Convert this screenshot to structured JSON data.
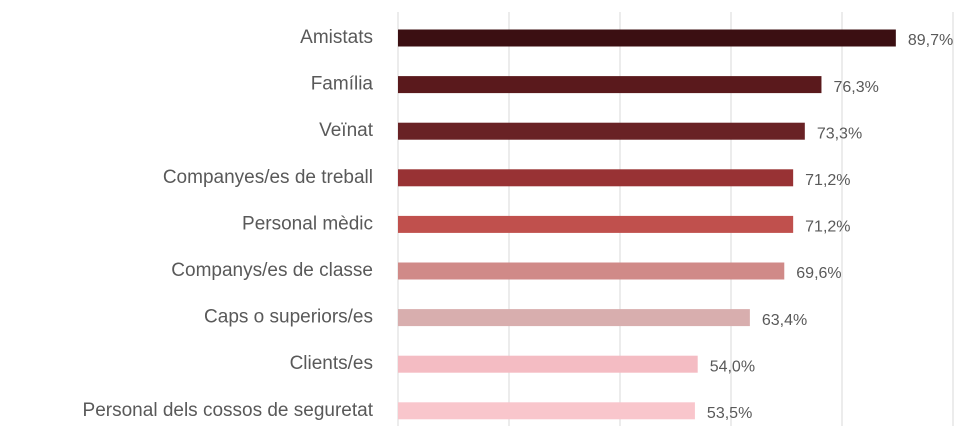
{
  "chart_data": {
    "type": "hbar",
    "categories": [
      "Amistats",
      "Família",
      "Veïnat",
      "Companyes/es de treball",
      "Personal mèdic",
      "Companys/es de classe",
      "Caps o superiors/es",
      "Clients/es",
      "Personal dels cossos de seguretat"
    ],
    "values": [
      89.7,
      76.3,
      73.3,
      71.2,
      71.2,
      69.6,
      63.4,
      54.0,
      53.5
    ],
    "value_labels": [
      "89,7%",
      "76,3%",
      "73,3%",
      "71,2%",
      "71,2%",
      "69,6%",
      "63,4%",
      "54,0%",
      "53,5%"
    ],
    "colors": [
      "#3b0f12",
      "#5a191c",
      "#692225",
      "#983234",
      "#c0504d",
      "#d08a88",
      "#d8aeae",
      "#f4bcc3",
      "#f9c6cc"
    ],
    "xlim": [
      0,
      100
    ],
    "xticks": [
      0,
      20,
      40,
      60,
      80,
      100
    ],
    "grid": true
  }
}
